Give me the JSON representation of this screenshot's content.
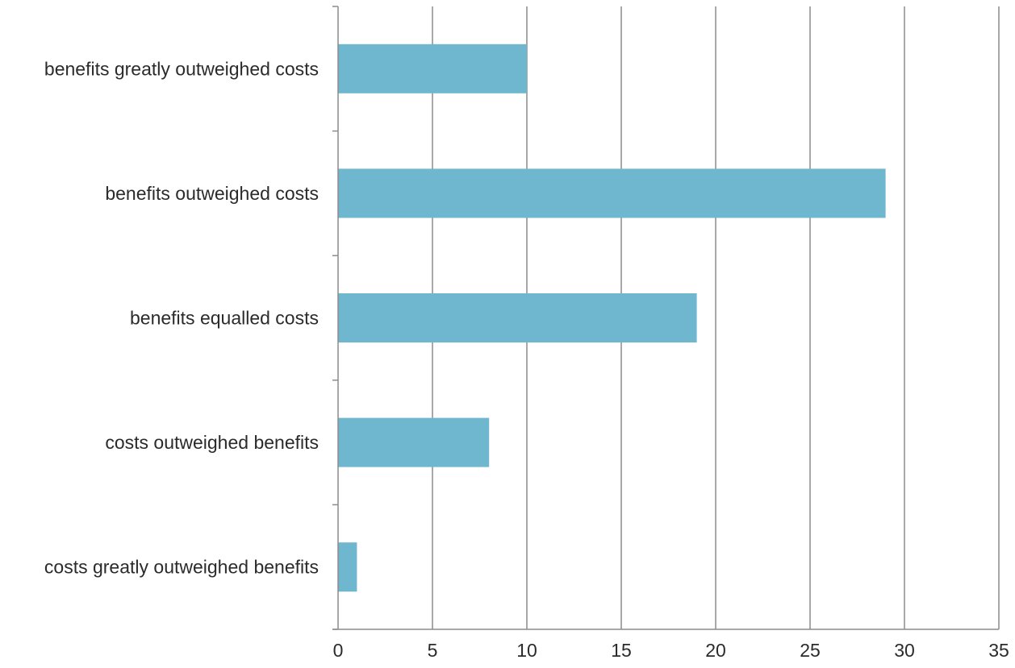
{
  "chart_data": {
    "type": "bar",
    "orientation": "horizontal",
    "categories": [
      "benefits greatly outweighed costs",
      "benefits outweighed costs",
      "benefits equalled costs",
      "costs outweighed benefits",
      "costs greatly outweighed benefits"
    ],
    "values": [
      10,
      29,
      19,
      8,
      1
    ],
    "xlim": [
      0,
      35
    ],
    "xticks": [
      "0",
      "5",
      "10",
      "15",
      "20",
      "25",
      "30",
      "35"
    ],
    "title": "",
    "xlabel": "",
    "ylabel": "",
    "grid": "vertical",
    "legend": "none",
    "colors": {
      "bar": "#6fb6cf",
      "grid": "#8c8c8c",
      "text": "#2b2b2b"
    }
  }
}
